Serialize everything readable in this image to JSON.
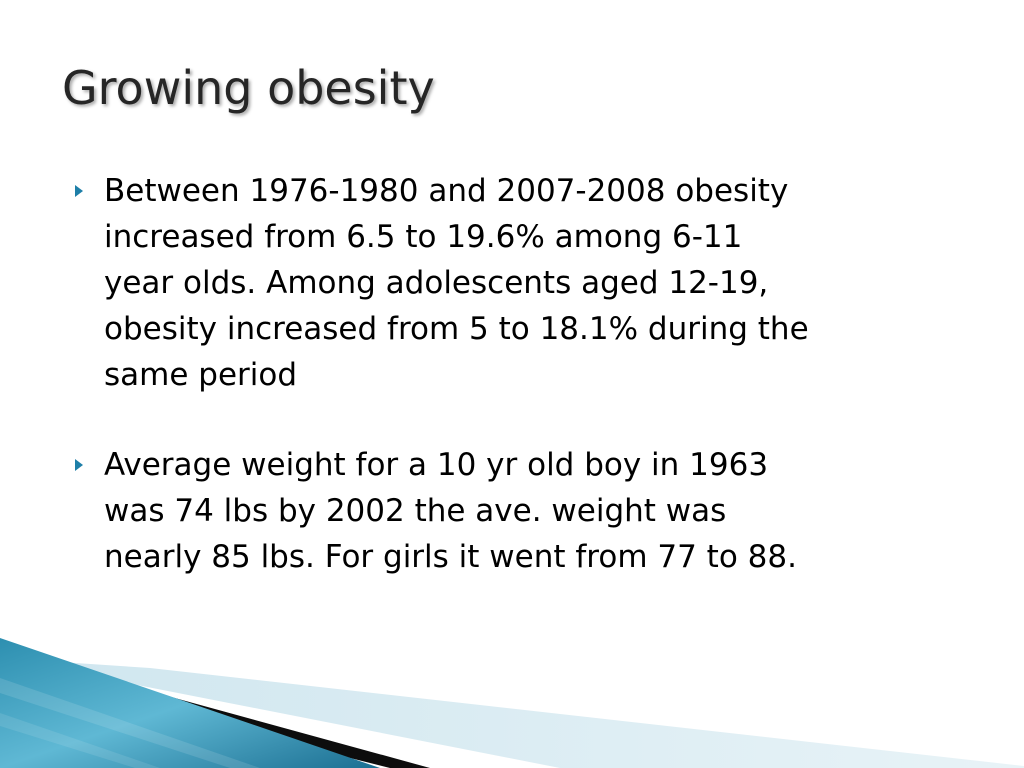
{
  "slide": {
    "title": "Growing obesity",
    "bullets": [
      {
        "text": "Between 1976-1980 and 2007-2008 obesity\nincreased from 6.5 to 19.6% among 6-11\nyear olds.  Among adolescents aged 12-19,\nobesity increased from 5 to 18.1% during the\nsame period"
      },
      {
        "text": "Average weight for a 10 yr old boy in 1963\nwas 74 lbs by 2002 the ave. weight was\nnearly 85 lbs. For girls it went from 77 to 88."
      }
    ]
  },
  "theme": {
    "accent": "#1e7fa8",
    "title_color": "#262626",
    "text_color": "#000000"
  }
}
